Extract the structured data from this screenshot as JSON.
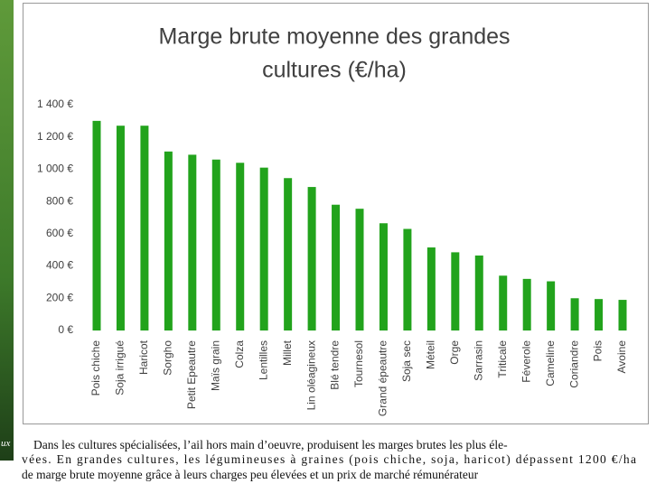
{
  "chart_data": {
    "type": "bar",
    "title": [
      "Marge brute moyenne des  grandes",
      "cultures (€/ha)"
    ],
    "categories": [
      "Pois chiche",
      "Soja irrigué",
      "Haricot",
      "Sorgho",
      "Petit Epeautre",
      "Maïs grain",
      "Colza",
      "Lentilles",
      "Millet",
      "Lin oléagineux",
      "Blé tendre",
      "Tournesol",
      "Grand épeautre",
      "Soja sec",
      "Méteil",
      "Orge",
      "Sarrasin",
      "Triticale",
      "Féverole",
      "Cameline",
      "Coriandre",
      "Pois",
      "Avoine"
    ],
    "values": [
      1300,
      1270,
      1270,
      1110,
      1090,
      1060,
      1040,
      1010,
      945,
      890,
      780,
      755,
      665,
      630,
      515,
      485,
      465,
      340,
      320,
      305,
      200,
      195,
      190
    ],
    "color": "#22a31c",
    "ylim": [
      0,
      1400
    ],
    "yticks": [
      {
        "value": 0,
        "label": "0 €"
      },
      {
        "value": 200,
        "label": "200 €"
      },
      {
        "value": 400,
        "label": "400 €"
      },
      {
        "value": 600,
        "label": "600 €"
      },
      {
        "value": 800,
        "label": "800 €"
      },
      {
        "value": 1000,
        "label": "1 000 €"
      },
      {
        "value": 1200,
        "label": "1 200 €"
      },
      {
        "value": 1400,
        "label": "1 400 €"
      }
    ],
    "grid": false
  },
  "side_fragment": "ux",
  "caption_lines": [
    "Dans les cultures spécialisées, l’ail hors main d’oeuvre, produisent les marges brutes les plus éle-",
    "vées. En grandes cultures, les légumineuses à graines (pois chiche, soja, haricot) dépassent 1200 €/ha",
    "de marge brute moyenne grâce à leurs charges peu élevées et un prix de marché rémunérateur"
  ]
}
